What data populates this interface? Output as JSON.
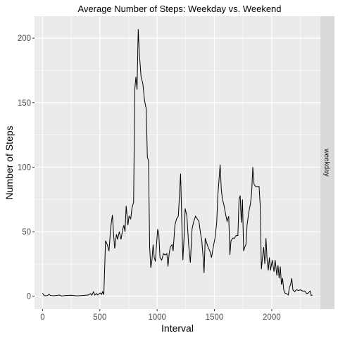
{
  "chart_data": {
    "type": "line",
    "title": "Average Number of Steps: Weekday vs. Weekend",
    "xlabel": "Interval",
    "ylabel": "Number of Steps",
    "xlim": [
      -70,
      2425
    ],
    "ylim": [
      -10,
      217
    ],
    "x_ticks": [
      0,
      500,
      1000,
      1500,
      2000
    ],
    "x_tick_labels": [
      "0",
      "500",
      "1000",
      "1500",
      "2000"
    ],
    "y_ticks": [
      0,
      50,
      100,
      150,
      200
    ],
    "y_tick_labels": [
      "0",
      "50",
      "100",
      "150",
      "200"
    ],
    "grid": true,
    "line_color": "#000000",
    "panel_background": "#ebebeb",
    "strip_background": "#d9d9d9",
    "facets": [
      {
        "strip_label": "weekday",
        "series": [
          {
            "points": [
              [
                0,
                2.3
              ],
              [
                15,
                0.5
              ],
              [
                30,
                0.4
              ],
              [
                45,
                0.6
              ],
              [
                55,
                1.5
              ],
              [
                70,
                0.6
              ],
              [
                100,
                0.4
              ],
              [
                150,
                0.9
              ],
              [
                165,
                0.2
              ],
              [
                200,
                0.6
              ],
              [
                250,
                0.8
              ],
              [
                300,
                0.3
              ],
              [
                350,
                0.6
              ],
              [
                400,
                1.0
              ],
              [
                420,
                2.0
              ],
              [
                430,
                0.8
              ],
              [
                445,
                3.4
              ],
              [
                455,
                0.9
              ],
              [
                470,
                2.1
              ],
              [
                480,
                1.0
              ],
              [
                505,
                2.6
              ],
              [
                515,
                1.4
              ],
              [
                525,
                3.5
              ],
              [
                535,
                1.2
              ],
              [
                550,
                43
              ],
              [
                565,
                40
              ],
              [
                580,
                35
              ],
              [
                595,
                53
              ],
              [
                610,
                63
              ],
              [
                620,
                48
              ],
              [
                630,
                37
              ],
              [
                645,
                48
              ],
              [
                655,
                44
              ],
              [
                670,
                50
              ],
              [
                685,
                44
              ],
              [
                700,
                52
              ],
              [
                710,
                55
              ],
              [
                720,
                50
              ],
              [
                730,
                70
              ],
              [
                745,
                55
              ],
              [
                755,
                62
              ],
              [
                770,
                60
              ],
              [
                780,
                68
              ],
              [
                795,
                73
              ],
              [
                805,
                160
              ],
              [
                815,
                170
              ],
              [
                825,
                160
              ],
              [
                835,
                207
              ],
              [
                845,
                188
              ],
              [
                860,
                170
              ],
              [
                875,
                165
              ],
              [
                890,
                152
              ],
              [
                905,
                145
              ],
              [
                915,
                108
              ],
              [
                925,
                105
              ],
              [
                935,
                38
              ],
              [
                945,
                22
              ],
              [
                955,
                28
              ],
              [
                965,
                40
              ],
              [
                975,
                30
              ],
              [
                985,
                27
              ],
              [
                995,
                40
              ],
              [
                1005,
                52
              ],
              [
                1015,
                48
              ],
              [
                1025,
                30
              ],
              [
                1040,
                28
              ],
              [
                1055,
                33
              ],
              [
                1070,
                32
              ],
              [
                1085,
                33
              ],
              [
                1095,
                23
              ],
              [
                1105,
                33
              ],
              [
                1115,
                38
              ],
              [
                1130,
                40
              ],
              [
                1140,
                35
              ],
              [
                1155,
                55
              ],
              [
                1170,
                60
              ],
              [
                1185,
                62
              ],
              [
                1195,
                78
              ],
              [
                1205,
                95
              ],
              [
                1215,
                60
              ],
              [
                1225,
                28
              ],
              [
                1235,
                45
              ],
              [
                1245,
                68
              ],
              [
                1260,
                62
              ],
              [
                1275,
                40
              ],
              [
                1290,
                26
              ],
              [
                1305,
                52
              ],
              [
                1320,
                58
              ],
              [
                1335,
                62
              ],
              [
                1350,
                60
              ],
              [
                1365,
                58
              ],
              [
                1380,
                48
              ],
              [
                1390,
                43
              ],
              [
                1400,
                32
              ],
              [
                1410,
                18
              ],
              [
                1420,
                45
              ],
              [
                1430,
                42
              ],
              [
                1445,
                38
              ],
              [
                1460,
                35
              ],
              [
                1475,
                30
              ],
              [
                1490,
                38
              ],
              [
                1505,
                45
              ],
              [
                1520,
                57
              ],
              [
                1530,
                78
              ],
              [
                1540,
                90
              ],
              [
                1550,
                102
              ],
              [
                1560,
                83
              ],
              [
                1570,
                75
              ],
              [
                1580,
                72
              ],
              [
                1595,
                65
              ],
              [
                1610,
                58
              ],
              [
                1625,
                62
              ],
              [
                1635,
                32
              ],
              [
                1645,
                43
              ],
              [
                1660,
                45
              ],
              [
                1675,
                45
              ],
              [
                1690,
                47
              ],
              [
                1705,
                47
              ],
              [
                1715,
                75
              ],
              [
                1725,
                78
              ],
              [
                1735,
                57
              ],
              [
                1745,
                75
              ],
              [
                1755,
                35
              ],
              [
                1765,
                38
              ],
              [
                1775,
                40
              ],
              [
                1785,
                55
              ],
              [
                1800,
                65
              ],
              [
                1815,
                72
              ],
              [
                1825,
                80
              ],
              [
                1835,
                100
              ],
              [
                1845,
                87
              ],
              [
                1860,
                85
              ],
              [
                1875,
                85
              ],
              [
                1890,
                85
              ],
              [
                1900,
                70
              ],
              [
                1910,
                21
              ],
              [
                1920,
                30
              ],
              [
                1930,
                38
              ],
              [
                1940,
                25
              ],
              [
                1950,
                45
              ],
              [
                1960,
                28
              ],
              [
                1970,
                20
              ],
              [
                1980,
                30
              ],
              [
                1990,
                20
              ],
              [
                2005,
                28
              ],
              [
                2020,
                19
              ],
              [
                2030,
                28
              ],
              [
                2045,
                16
              ],
              [
                2055,
                24
              ],
              [
                2065,
                14
              ],
              [
                2075,
                23
              ],
              [
                2085,
                9
              ],
              [
                2095,
                14
              ],
              [
                2105,
                5
              ],
              [
                2115,
                2.5
              ],
              [
                2130,
                2.0
              ],
              [
                2145,
                1.0
              ],
              [
                2155,
                7
              ],
              [
                2165,
                9
              ],
              [
                2175,
                14
              ],
              [
                2185,
                5
              ],
              [
                2200,
                3.5
              ],
              [
                2215,
                5
              ],
              [
                2235,
                4.5
              ],
              [
                2250,
                5
              ],
              [
                2270,
                4
              ],
              [
                2290,
                4
              ],
              [
                2305,
                2.0
              ],
              [
                2320,
                2.5
              ],
              [
                2335,
                4
              ],
              [
                2345,
                0.5
              ],
              [
                2355,
                1.0
              ]
            ]
          }
        ]
      }
    ]
  }
}
